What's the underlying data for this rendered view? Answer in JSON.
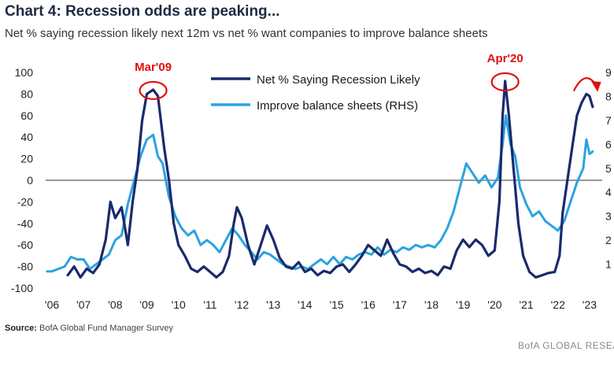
{
  "header": {
    "title": "Chart 4: Recession odds are peaking...",
    "subtitle": "Net % saying recession likely next 12m vs net % want companies to improve balance sheets"
  },
  "footer": {
    "source_label": "Source:",
    "source_text": "BofA Global Fund Manager Survey",
    "credit": "BofA GLOBAL RESEARCH"
  },
  "colors": {
    "recession": "#1a2a6c",
    "balance": "#2aa3e0",
    "annotation": "#e01010",
    "zero_line": "#777777"
  },
  "chart_data": {
    "type": "line",
    "xlim": [
      2005.8,
      2023.4
    ],
    "x_ticks": [
      "'06",
      "'07",
      "'08",
      "'09",
      "'10",
      "'11",
      "'12",
      "'13",
      "'14",
      "'15",
      "'16",
      "'17",
      "'18",
      "'19",
      "'20",
      "'21",
      "'22",
      "'23"
    ],
    "ylim_left": [
      -100,
      100
    ],
    "y_ticks_left": [
      "100",
      "80",
      "60",
      "40",
      "20",
      "0",
      "-20",
      "-40",
      "-60",
      "-80",
      "-100"
    ],
    "ylim_right": [
      0,
      90
    ],
    "y_ticks_right_visible": [
      "9",
      "8",
      "7",
      "6",
      "5",
      "4",
      "3",
      "2",
      "1"
    ],
    "legend": [
      {
        "label": "Net % Saying Recession Likely",
        "color": "#1a2a6c"
      },
      {
        "label": "Improve balance sheets (RHS)",
        "color": "#2aa3e0"
      }
    ],
    "annotations": [
      {
        "label": "Mar'09",
        "x": 2009.2,
        "y": 84
      },
      {
        "label": "Apr'20",
        "x": 2020.33,
        "y": 92
      }
    ],
    "trend_arrow_x": [
      2022.5,
      2023.2
    ],
    "series": [
      {
        "name": "Net % Saying Recession Likely",
        "axis": "left",
        "color": "#1a2a6c",
        "points": [
          [
            2006.5,
            -88
          ],
          [
            2006.7,
            -80
          ],
          [
            2006.9,
            -90
          ],
          [
            2007.1,
            -82
          ],
          [
            2007.3,
            -86
          ],
          [
            2007.5,
            -78
          ],
          [
            2007.7,
            -55
          ],
          [
            2007.85,
            -20
          ],
          [
            2008.0,
            -35
          ],
          [
            2008.2,
            -25
          ],
          [
            2008.4,
            -60
          ],
          [
            2008.55,
            -20
          ],
          [
            2008.7,
            10
          ],
          [
            2008.85,
            55
          ],
          [
            2009.0,
            80
          ],
          [
            2009.2,
            84
          ],
          [
            2009.35,
            78
          ],
          [
            2009.55,
            30
          ],
          [
            2009.7,
            0
          ],
          [
            2009.85,
            -40
          ],
          [
            2010.0,
            -60
          ],
          [
            2010.2,
            -70
          ],
          [
            2010.4,
            -82
          ],
          [
            2010.6,
            -85
          ],
          [
            2010.8,
            -80
          ],
          [
            2011.0,
            -85
          ],
          [
            2011.2,
            -90
          ],
          [
            2011.4,
            -85
          ],
          [
            2011.6,
            -70
          ],
          [
            2011.75,
            -40
          ],
          [
            2011.85,
            -25
          ],
          [
            2012.0,
            -35
          ],
          [
            2012.2,
            -60
          ],
          [
            2012.4,
            -78
          ],
          [
            2012.6,
            -60
          ],
          [
            2012.8,
            -42
          ],
          [
            2013.0,
            -55
          ],
          [
            2013.2,
            -72
          ],
          [
            2013.4,
            -80
          ],
          [
            2013.6,
            -82
          ],
          [
            2013.8,
            -76
          ],
          [
            2014.0,
            -85
          ],
          [
            2014.2,
            -82
          ],
          [
            2014.4,
            -88
          ],
          [
            2014.6,
            -84
          ],
          [
            2014.8,
            -86
          ],
          [
            2015.0,
            -80
          ],
          [
            2015.2,
            -78
          ],
          [
            2015.4,
            -85
          ],
          [
            2015.6,
            -78
          ],
          [
            2015.8,
            -70
          ],
          [
            2016.0,
            -60
          ],
          [
            2016.2,
            -65
          ],
          [
            2016.4,
            -70
          ],
          [
            2016.6,
            -55
          ],
          [
            2016.8,
            -68
          ],
          [
            2017.0,
            -78
          ],
          [
            2017.2,
            -80
          ],
          [
            2017.4,
            -85
          ],
          [
            2017.6,
            -82
          ],
          [
            2017.8,
            -86
          ],
          [
            2018.0,
            -84
          ],
          [
            2018.2,
            -88
          ],
          [
            2018.4,
            -80
          ],
          [
            2018.6,
            -82
          ],
          [
            2018.8,
            -65
          ],
          [
            2019.0,
            -55
          ],
          [
            2019.2,
            -62
          ],
          [
            2019.4,
            -55
          ],
          [
            2019.6,
            -60
          ],
          [
            2019.8,
            -70
          ],
          [
            2020.0,
            -65
          ],
          [
            2020.15,
            -20
          ],
          [
            2020.25,
            60
          ],
          [
            2020.33,
            92
          ],
          [
            2020.45,
            60
          ],
          [
            2020.6,
            10
          ],
          [
            2020.75,
            -40
          ],
          [
            2020.9,
            -70
          ],
          [
            2021.1,
            -85
          ],
          [
            2021.3,
            -90
          ],
          [
            2021.5,
            -88
          ],
          [
            2021.7,
            -86
          ],
          [
            2021.9,
            -85
          ],
          [
            2022.05,
            -70
          ],
          [
            2022.15,
            -30
          ],
          [
            2022.3,
            0
          ],
          [
            2022.45,
            30
          ],
          [
            2022.6,
            60
          ],
          [
            2022.75,
            72
          ],
          [
            2022.9,
            80
          ],
          [
            2023.0,
            78
          ],
          [
            2023.1,
            68
          ]
        ]
      },
      {
        "name": "Improve balance sheets (RHS)",
        "axis": "right",
        "color": "#2aa3e0",
        "points": [
          [
            2005.85,
            7
          ],
          [
            2006.0,
            7
          ],
          [
            2006.2,
            8
          ],
          [
            2006.4,
            9
          ],
          [
            2006.6,
            13
          ],
          [
            2006.8,
            12
          ],
          [
            2007.0,
            12
          ],
          [
            2007.2,
            8
          ],
          [
            2007.4,
            10
          ],
          [
            2007.6,
            12
          ],
          [
            2007.8,
            14
          ],
          [
            2008.0,
            20
          ],
          [
            2008.2,
            22
          ],
          [
            2008.4,
            35
          ],
          [
            2008.6,
            45
          ],
          [
            2008.8,
            55
          ],
          [
            2009.0,
            62
          ],
          [
            2009.2,
            64
          ],
          [
            2009.35,
            55
          ],
          [
            2009.5,
            52
          ],
          [
            2009.7,
            38
          ],
          [
            2009.9,
            30
          ],
          [
            2010.1,
            25
          ],
          [
            2010.3,
            22
          ],
          [
            2010.5,
            24
          ],
          [
            2010.7,
            18
          ],
          [
            2010.9,
            20
          ],
          [
            2011.1,
            18
          ],
          [
            2011.3,
            15
          ],
          [
            2011.5,
            20
          ],
          [
            2011.7,
            25
          ],
          [
            2011.9,
            22
          ],
          [
            2012.1,
            18
          ],
          [
            2012.3,
            15
          ],
          [
            2012.5,
            12
          ],
          [
            2012.7,
            15
          ],
          [
            2012.9,
            14
          ],
          [
            2013.1,
            12
          ],
          [
            2013.3,
            10
          ],
          [
            2013.5,
            9
          ],
          [
            2013.7,
            8
          ],
          [
            2013.9,
            9
          ],
          [
            2014.1,
            8
          ],
          [
            2014.3,
            10
          ],
          [
            2014.5,
            12
          ],
          [
            2014.7,
            10
          ],
          [
            2014.9,
            13
          ],
          [
            2015.1,
            10
          ],
          [
            2015.3,
            13
          ],
          [
            2015.5,
            12
          ],
          [
            2015.7,
            14
          ],
          [
            2015.9,
            15
          ],
          [
            2016.1,
            14
          ],
          [
            2016.3,
            17
          ],
          [
            2016.5,
            14
          ],
          [
            2016.7,
            16
          ],
          [
            2016.9,
            15
          ],
          [
            2017.1,
            17
          ],
          [
            2017.3,
            16
          ],
          [
            2017.5,
            18
          ],
          [
            2017.7,
            17
          ],
          [
            2017.9,
            18
          ],
          [
            2018.1,
            17
          ],
          [
            2018.3,
            20
          ],
          [
            2018.5,
            25
          ],
          [
            2018.7,
            32
          ],
          [
            2018.9,
            42
          ],
          [
            2019.1,
            52
          ],
          [
            2019.3,
            48
          ],
          [
            2019.5,
            44
          ],
          [
            2019.7,
            47
          ],
          [
            2019.9,
            42
          ],
          [
            2020.1,
            46
          ],
          [
            2020.25,
            60
          ],
          [
            2020.35,
            72
          ],
          [
            2020.5,
            60
          ],
          [
            2020.65,
            55
          ],
          [
            2020.8,
            42
          ],
          [
            2021.0,
            35
          ],
          [
            2021.2,
            30
          ],
          [
            2021.4,
            32
          ],
          [
            2021.6,
            28
          ],
          [
            2021.8,
            26
          ],
          [
            2022.0,
            24
          ],
          [
            2022.2,
            28
          ],
          [
            2022.4,
            36
          ],
          [
            2022.6,
            44
          ],
          [
            2022.8,
            50
          ],
          [
            2022.9,
            62
          ],
          [
            2023.0,
            56
          ],
          [
            2023.1,
            57
          ]
        ]
      }
    ]
  }
}
